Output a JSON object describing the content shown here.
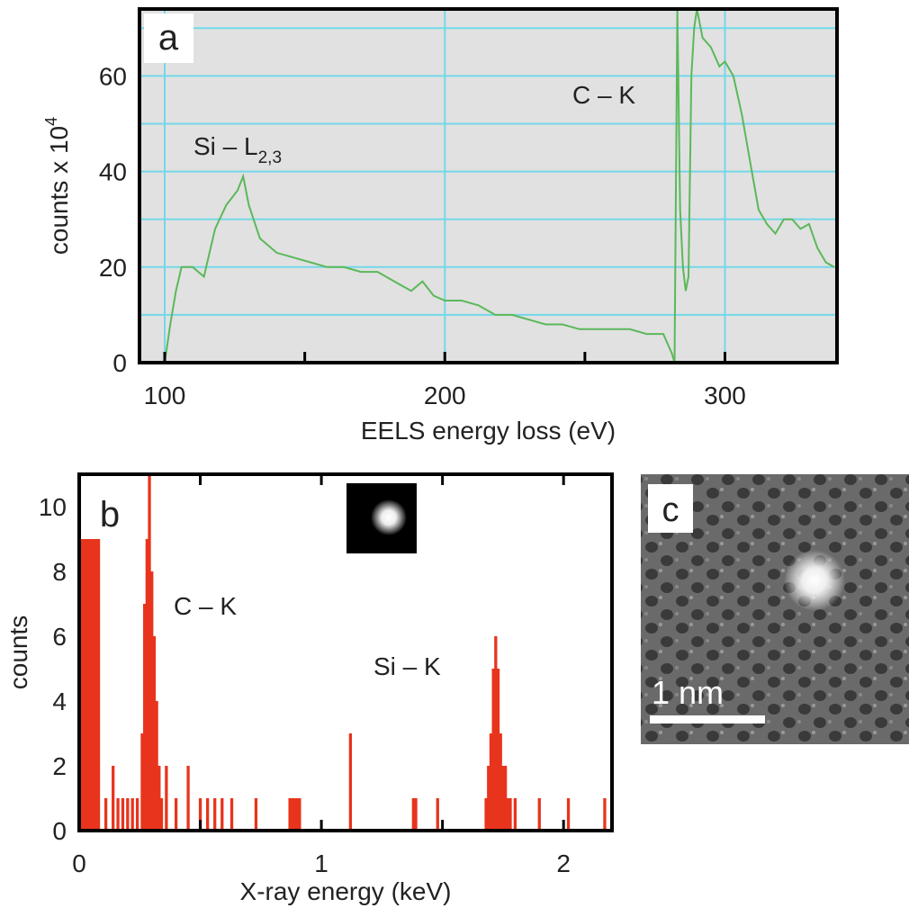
{
  "chart_data": [
    {
      "type": "line",
      "panel_label": "a",
      "xlabel": "EELS energy loss (eV)",
      "ylabel": "counts x 10",
      "ylabel_sup": "4",
      "annotations": [
        {
          "text": "Si – L",
          "sub": "2,3"
        },
        {
          "text": "C – K"
        }
      ],
      "x": [
        100,
        102,
        104,
        106,
        110,
        114,
        118,
        122,
        126,
        128,
        130,
        134,
        140,
        146,
        152,
        158,
        164,
        170,
        176,
        182,
        188,
        192,
        196,
        200,
        206,
        212,
        218,
        224,
        230,
        236,
        242,
        248,
        254,
        260,
        266,
        272,
        278,
        281,
        282,
        283,
        284,
        285,
        286,
        287,
        288,
        289,
        290,
        292,
        295,
        298,
        300,
        303,
        306,
        309,
        312,
        315,
        318,
        321,
        324,
        327,
        330,
        333,
        336,
        339
      ],
      "values": [
        0,
        8,
        15,
        20,
        20,
        18,
        28,
        33,
        36,
        39,
        33,
        26,
        23,
        22,
        21,
        20,
        20,
        19,
        19,
        17,
        15,
        17,
        14,
        13,
        13,
        12,
        10,
        10,
        9,
        8,
        8,
        7,
        7,
        7,
        7,
        6,
        6,
        2,
        0,
        74,
        32,
        20,
        15,
        18,
        60,
        70,
        74,
        68,
        66,
        62,
        63,
        60,
        52,
        42,
        32,
        29,
        27,
        30,
        30,
        28,
        29,
        24,
        21,
        20
      ],
      "color": "#5bb85a",
      "background": "#e1e1e1",
      "grid_color": "#72d8ea",
      "xlim": [
        91,
        340
      ],
      "ylim": [
        0,
        74
      ],
      "xticks": [
        100,
        200,
        300
      ],
      "xminor": [
        150,
        250
      ],
      "yticks": [
        0,
        20,
        40,
        60
      ],
      "yminor": [
        10,
        30,
        50,
        70
      ],
      "grid": true
    },
    {
      "type": "bar",
      "panel_label": "b",
      "xlabel": "X-ray energy (keV)",
      "ylabel": "counts",
      "annotations": [
        {
          "text": "C – K"
        },
        {
          "text": "Si – K"
        }
      ],
      "x": [
        0.01,
        0.02,
        0.03,
        0.04,
        0.05,
        0.06,
        0.07,
        0.08,
        0.11,
        0.14,
        0.16,
        0.18,
        0.2,
        0.22,
        0.24,
        0.26,
        0.27,
        0.28,
        0.29,
        0.3,
        0.31,
        0.32,
        0.33,
        0.34,
        0.36,
        0.4,
        0.45,
        0.5,
        0.53,
        0.56,
        0.59,
        0.63,
        0.73,
        0.87,
        0.88,
        0.89,
        0.9,
        0.91,
        1.12,
        1.38,
        1.39,
        1.48,
        1.68,
        1.69,
        1.7,
        1.71,
        1.72,
        1.73,
        1.74,
        1.75,
        1.76,
        1.77,
        1.78,
        1.8,
        1.9,
        2.02,
        2.17
      ],
      "values": [
        9,
        9,
        9,
        9,
        9,
        9,
        9,
        9,
        1,
        2,
        1,
        1,
        1,
        1,
        1,
        3,
        7,
        9,
        11,
        8,
        6,
        4,
        2,
        1,
        2,
        1,
        2,
        1,
        1,
        1,
        1,
        1,
        1,
        1,
        1,
        1,
        1,
        1,
        3,
        1,
        1,
        1,
        1,
        2,
        3,
        5,
        6,
        5,
        3,
        2,
        2,
        1,
        1,
        1,
        1,
        1,
        1
      ],
      "color": "#e8341c",
      "background": "#ffffff",
      "xlim": [
        0,
        2.2
      ],
      "ylim": [
        0,
        11
      ],
      "xticks": [
        0,
        1,
        2
      ],
      "xminor": [
        0.5,
        1.5
      ],
      "yticks": [
        0,
        2,
        4,
        6,
        8,
        10
      ],
      "grid": false
    },
    {
      "type": "image",
      "panel_label": "c",
      "scale_label": "1 nm"
    }
  ]
}
